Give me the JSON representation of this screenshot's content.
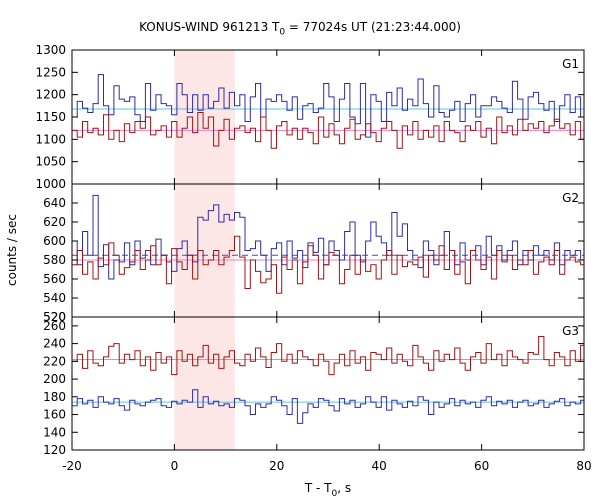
{
  "chart_data": {
    "type": "line",
    "title_main": "KONUS-WIND 961213 T",
    "title_sub": "0",
    "title_rest": " = 77024s UT (21:23:44.000)",
    "xlabel_main": "T - T",
    "xlabel_sub": "0",
    "xlabel_rest": ", s",
    "ylabel": "counts / sec",
    "xlim": [
      -20,
      80
    ],
    "xticks": [
      "-20",
      "0",
      "20",
      "40",
      "60",
      "80"
    ],
    "xtick_values": [
      -20,
      0,
      20,
      40,
      60,
      80
    ],
    "highlight": {
      "x0": 0,
      "x1": 11.8,
      "color": "#fde6e6"
    },
    "colors": {
      "blue": "#2d2da8",
      "red": "#a01414",
      "blue_bg": "#60c0e8",
      "red_bg": "#e880d8",
      "blue_dash": "#3050c8"
    },
    "bin_start": -20,
    "bin_width": 1.024,
    "panels": [
      {
        "label": "G1",
        "ylim": [
          1000,
          1300
        ],
        "yticks": [
          "1300",
          "1250",
          "1200",
          "1150",
          "1100",
          "1050"
        ],
        "ytick_values": [
          1300,
          1250,
          1200,
          1150,
          1100,
          1050
        ],
        "series": [
          {
            "color": "blue",
            "background": 1168,
            "values": [
              1150,
              1185,
              1170,
              1160,
              1180,
              1245,
              1175,
              1155,
              1220,
              1190,
              1185,
              1195,
              1155,
              1140,
              1225,
              1165,
              1200,
              1180,
              1175,
              1155,
              1225,
              1200,
              1160,
              1200,
              1165,
              1200,
              1170,
              1185,
              1215,
              1170,
              1205,
              1175,
              1200,
              1140,
              1195,
              1225,
              1150,
              1190,
              1185,
              1200,
              1185,
              1165,
              1195,
              1145,
              1175,
              1180,
              1160,
              1170,
              1225,
              1195,
              1140,
              1190,
              1225,
              1150,
              1135,
              1225,
              1105,
              1200,
              1185,
              1140,
              1205,
              1175,
              1215,
              1165,
              1190,
              1175,
              1235,
              1180,
              1150,
              1220,
              1160,
              1150,
              1165,
              1185,
              1140,
              1180,
              1200,
              1150,
              1175,
              1175,
              1195,
              1185,
              1170,
              1160,
              1230,
              1190,
              1145,
              1195,
              1205,
              1180,
              1165,
              1185,
              1140,
              1175,
              1200,
              1160,
              1195,
              1150
            ]
          },
          {
            "color": "red",
            "background": 1120,
            "values": [
              1120,
              1105,
              1140,
              1115,
              1125,
              1110,
              1155,
              1100,
              1120,
              1095,
              1135,
              1115,
              1140,
              1125,
              1150,
              1110,
              1120,
              1130,
              1105,
              1140,
              1105,
              1125,
              1150,
              1115,
              1160,
              1125,
              1150,
              1085,
              1120,
              1145,
              1100,
              1125,
              1130,
              1115,
              1125,
              1095,
              1150,
              1120,
              1080,
              1130,
              1140,
              1110,
              1125,
              1100,
              1125,
              1115,
              1090,
              1150,
              1105,
              1135,
              1110,
              1090,
              1125,
              1145,
              1100,
              1110,
              1135,
              1115,
              1095,
              1125,
              1140,
              1120,
              1080,
              1130,
              1110,
              1140,
              1100,
              1120,
              1105,
              1130,
              1095,
              1140,
              1120,
              1115,
              1095,
              1130,
              1120,
              1140,
              1105,
              1125,
              1090,
              1150,
              1115,
              1130,
              1110,
              1145,
              1120,
              1135,
              1125,
              1140,
              1115,
              1130,
              1145,
              1125,
              1135,
              1110,
              1140,
              1100
            ]
          }
        ]
      },
      {
        "label": "G2",
        "ylim": [
          520,
          660
        ],
        "yticks": [
          "640",
          "620",
          "600",
          "580",
          "560",
          "540",
          "520"
        ],
        "ytick_values": [
          640,
          620,
          600,
          580,
          560,
          540,
          520
        ],
        "series": [
          {
            "color": "blue",
            "background": 585,
            "dashed": true,
            "values": [
              600,
              575,
              610,
              585,
              648,
              573,
              596,
              560,
              580,
              578,
              598,
              575,
              600,
              582,
              590,
              575,
              602,
              585,
              578,
              568,
              592,
              600,
              585,
              578,
              625,
              622,
              632,
              638,
              620,
              628,
              622,
              630,
              625,
              590,
              592,
              600,
              585,
              568,
              592,
              598,
              575,
              600,
              582,
              590,
              572,
              598,
              588,
              603,
              575,
              600,
              590,
              580,
              610,
              620,
              585,
              578,
              600,
              620,
              605,
              598,
              585,
              630,
              605,
              618,
              590,
              580,
              572,
              600,
              590,
              575,
              585,
              610,
              590,
              575,
              598,
              580,
              590,
              595,
              575,
              605,
              585,
              595,
              580,
              590,
              600,
              575,
              590,
              580,
              595,
              585,
              590,
              580,
              598,
              575,
              590,
              585,
              590,
              580
            ]
          },
          {
            "color": "red",
            "background": 580,
            "values": [
              575,
              590,
              565,
              578,
              560,
              582,
              575,
              598,
              585,
              565,
              572,
              578,
              590,
              570,
              580,
              595,
              575,
              585,
              555,
              592,
              578,
              570,
              585,
              560,
              590,
              575,
              580,
              590,
              575,
              583,
              590,
              605,
              583,
              550,
              580,
              568,
              556,
              560,
              575,
              545,
              583,
              570,
              580,
              555,
              578,
              595,
              585,
              560,
              575,
              588,
              585,
              555,
              570,
              585,
              565,
              580,
              568,
              575,
              560,
              580,
              590,
              565,
              585,
              573,
              578,
              575,
              583,
              562,
              585,
              580,
              595,
              570,
              590,
              565,
              578,
              555,
              590,
              580,
              570,
              583,
              560,
              590,
              578,
              585,
              570,
              580,
              575,
              590,
              565,
              578,
              583,
              575,
              590,
              565,
              580,
              583,
              578,
              575
            ]
          }
        ]
      },
      {
        "label": "G3",
        "ylim": [
          120,
          270
        ],
        "yticks": [
          "260",
          "240",
          "220",
          "200",
          "180",
          "160",
          "140",
          "120"
        ],
        "ytick_values": [
          260,
          240,
          220,
          200,
          180,
          160,
          140,
          120
        ],
        "series": [
          {
            "color": "red",
            "background": 222,
            "values": [
              220,
              228,
              212,
              232,
              218,
              215,
              225,
              237,
              240,
              218,
              228,
              222,
              232,
              215,
              225,
              210,
              230,
              218,
              225,
              205,
              232,
              220,
              228,
              215,
              225,
              238,
              218,
              228,
              212,
              225,
              232,
              218,
              215,
              228,
              220,
              235,
              225,
              213,
              230,
              240,
              220,
              228,
              218,
              232,
              225,
              222,
              215,
              228,
              220,
              205,
              218,
              228,
              215,
              232,
              218,
              225,
              210,
              230,
              228,
              222,
              235,
              218,
              228,
              220,
              215,
              238,
              225,
              218,
              210,
              232,
              220,
              228,
              222,
              235,
              218,
              210,
              225,
              230,
              218,
              240,
              222,
              228,
              215,
              232,
              225,
              222,
              218,
              230,
              228,
              248,
              222,
              215,
              230,
              225,
              215,
              232,
              220,
              238
            ]
          },
          {
            "color": "blue",
            "background": 174,
            "values": [
              170,
              178,
              172,
              176,
              168,
              180,
              174,
              172,
              178,
              170,
              165,
              176,
              172,
              170,
              174,
              176,
              178,
              170,
              168,
              175,
              172,
              176,
              174,
              188,
              168,
              180,
              172,
              175,
              170,
              172,
              168,
              178,
              176,
              170,
              160,
              172,
              168,
              172,
              180,
              176,
              170,
              160,
              178,
              150,
              162,
              172,
              168,
              178,
              176,
              170,
              164,
              178,
              172,
              176,
              168,
              172,
              180,
              174,
              168,
              180,
              165,
              176,
              172,
              168,
              175,
              170,
              180,
              176,
              160,
              174,
              168,
              172,
              178,
              170,
              176,
              172,
              174,
              168,
              176,
              180,
              170,
              175,
              172,
              176,
              168,
              174,
              176,
              170,
              172,
              176,
              168,
              172,
              175,
              178,
              170,
              174,
              172,
              176
            ]
          }
        ]
      }
    ]
  }
}
